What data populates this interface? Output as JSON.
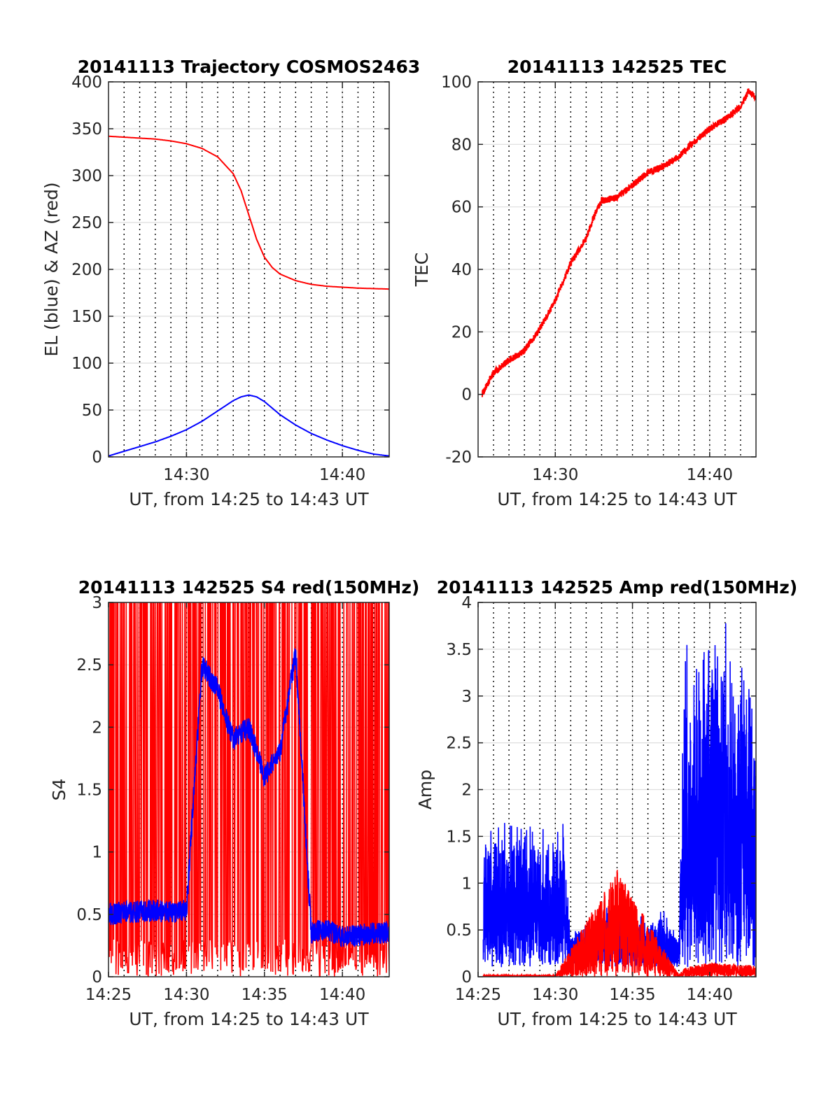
{
  "figure": {
    "colors": {
      "red": "#ff0000",
      "blue": "#0000ff",
      "axis": "#262626",
      "grid": "#dedede"
    }
  },
  "chart_data": [
    {
      "id": "trajectory",
      "type": "line",
      "title": "20141113 Trajectory COSMOS2463",
      "xlabel": "UT, from 14:25 to 14:43 UT",
      "ylabel": "EL (blue) & AZ (red)",
      "xlim": [
        "14:25",
        "14:43"
      ],
      "ylim": [
        0,
        400
      ],
      "xticks": [
        "14:30",
        "14:40"
      ],
      "yticks": [
        "0",
        "50",
        "100",
        "150",
        "200",
        "250",
        "300",
        "350",
        "400"
      ],
      "grid": true,
      "minute_gridlines": "dotted",
      "series": [
        {
          "color": "#ff0000",
          "x": [
            "14:25",
            "14:26",
            "14:27",
            "14:28",
            "14:29",
            "14:30",
            "14:31",
            "14:32",
            "14:33",
            "14:33:30",
            "14:34",
            "14:34:30",
            "14:35",
            "14:35:30",
            "14:36",
            "14:37",
            "14:38",
            "14:39",
            "14:40",
            "14:41",
            "14:42",
            "14:43"
          ],
          "y": [
            342,
            341,
            340,
            339,
            337,
            334,
            329,
            320,
            302,
            284,
            258,
            232,
            213,
            202,
            195,
            188,
            184,
            182,
            181,
            180,
            179.5,
            179
          ]
        },
        {
          "color": "#0000ff",
          "x": [
            "14:25",
            "14:26",
            "14:27",
            "14:28",
            "14:29",
            "14:30",
            "14:31",
            "14:32",
            "14:33",
            "14:33:30",
            "14:34",
            "14:34:30",
            "14:35",
            "14:35:30",
            "14:36",
            "14:37",
            "14:38",
            "14:39",
            "14:40",
            "14:41",
            "14:42",
            "14:43"
          ],
          "y": [
            1,
            6,
            11,
            16,
            22,
            29,
            38,
            49,
            60,
            64,
            66,
            64,
            59,
            52,
            45,
            34,
            25,
            18,
            12,
            7,
            3,
            1
          ]
        }
      ]
    },
    {
      "id": "tec",
      "type": "line",
      "title": "20141113 142525 TEC",
      "xlabel": "UT, from 14:25 to 14:43 UT",
      "ylabel": "TEC",
      "xlim": [
        "14:25",
        "14:43"
      ],
      "ylim": [
        -20,
        100
      ],
      "xticks": [
        "14:30",
        "14:40"
      ],
      "yticks": [
        "-20",
        "0",
        "20",
        "40",
        "60",
        "80",
        "100"
      ],
      "grid": true,
      "minute_gridlines": "dotted",
      "series": [
        {
          "color": "#ff0000",
          "x": [
            "14:25:15",
            "14:26",
            "14:27",
            "14:28",
            "14:29",
            "14:30",
            "14:31",
            "14:32",
            "14:32:30",
            "14:33",
            "14:34",
            "14:35",
            "14:36",
            "14:37",
            "14:38",
            "14:39",
            "14:40",
            "14:41",
            "14:42",
            "14:42:30",
            "14:43"
          ],
          "y": [
            0,
            7,
            11,
            14,
            21,
            30,
            42,
            50,
            57,
            62,
            63,
            67,
            71,
            73,
            76,
            81,
            85,
            88,
            92,
            97,
            95
          ]
        }
      ]
    },
    {
      "id": "s4",
      "type": "line",
      "title": "20141113 142525 S4 red(150MHz)",
      "xlabel": "UT, from 14:25 to 14:43 UT",
      "ylabel": "S4",
      "xlim": [
        "14:25",
        "14:43"
      ],
      "ylim": [
        0,
        3
      ],
      "xticks": [
        "14:25",
        "14:30",
        "14:35",
        "14:40"
      ],
      "yticks": [
        "0",
        "0.5",
        "1",
        "1.5",
        "2",
        "2.5",
        "3"
      ],
      "grid": true,
      "minute_gridlines": "dotted",
      "series": [
        {
          "color": "#ff0000",
          "description_range": "oscillates 0 to 3 throughout",
          "x": [
            "14:25",
            "14:30",
            "14:31",
            "14:35",
            "14:38",
            "14:43"
          ],
          "y": [
            3,
            3,
            2.2,
            2.0,
            3,
            3
          ]
        },
        {
          "color": "#0000ff",
          "x": [
            "14:25",
            "14:26",
            "14:27",
            "14:28",
            "14:29",
            "14:30",
            "14:31",
            "14:32",
            "14:33",
            "14:34",
            "14:35",
            "14:36",
            "14:37",
            "14:38",
            "14:39",
            "14:40",
            "14:41",
            "14:42",
            "14:43"
          ],
          "y": [
            0.5,
            0.52,
            0.52,
            0.53,
            0.52,
            0.53,
            2.5,
            2.3,
            1.9,
            2.0,
            1.6,
            1.8,
            2.6,
            0.35,
            0.38,
            0.32,
            0.33,
            0.35,
            0.36
          ]
        }
      ]
    },
    {
      "id": "amp",
      "type": "line",
      "title": "20141113 142525 Amp red(150MHz)",
      "xlabel": "UT, from 14:25 to 14:43 UT",
      "ylabel": "Amp",
      "xlim": [
        "14:25",
        "14:43"
      ],
      "ylim": [
        0,
        4
      ],
      "xticks": [
        "14:25",
        "14:30",
        "14:35",
        "14:40"
      ],
      "yticks": [
        "0",
        "0.5",
        "1",
        "1.5",
        "2",
        "2.5",
        "3",
        "3.5",
        "4"
      ],
      "grid": true,
      "minute_gridlines": "dotted",
      "series": [
        {
          "color": "#0000ff",
          "x": [
            "14:25:20",
            "14:26",
            "14:27",
            "14:28",
            "14:29",
            "14:30",
            "14:30:30",
            "14:31",
            "14:32",
            "14:33",
            "14:34",
            "14:35",
            "14:36",
            "14:37",
            "14:38",
            "14:38:20",
            "14:39",
            "14:40",
            "14:41",
            "14:42",
            "14:43"
          ],
          "y": [
            1.3,
            1.5,
            1.4,
            1.5,
            1.4,
            1.5,
            1.6,
            0.35,
            0.5,
            0.6,
            0.7,
            0.55,
            0.5,
            0.6,
            0.3,
            3.2,
            3.3,
            3.5,
            3.4,
            3.2,
            2.9
          ]
        },
        {
          "color": "#ff0000",
          "x": [
            "14:25:20",
            "14:30",
            "14:34",
            "14:38",
            "14:38:20",
            "14:40",
            "14:43"
          ],
          "y": [
            0.02,
            0.02,
            1.15,
            0.02,
            0.1,
            0.15,
            0.12
          ]
        }
      ]
    }
  ]
}
